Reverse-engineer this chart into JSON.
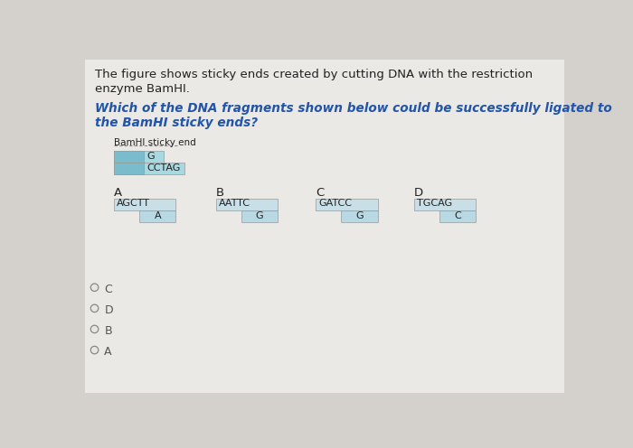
{
  "background_color": "#d4d0cb",
  "title_text1": "The figure shows sticky ends created by cutting DNA with the restriction",
  "title_text2": "enzyme BamHI.",
  "question_text1": "Which of the DNA fragments shown below could be successfully ligated to",
  "question_text2": "the BamHI sticky ends?",
  "question_color": "#2255aa",
  "label_sticky": "BamHI sticky end",
  "sticky_top_text": "G",
  "sticky_bottom_text": "CCTAG",
  "sticky_top_box_color": "#a8d8e0",
  "sticky_bottom_box_color": "#a8d8e0",
  "sticky_strip_color": "#7bbccc",
  "fragments": [
    {
      "label": "A",
      "top": "AGCTT",
      "bottom": "A"
    },
    {
      "label": "B",
      "top": "AATTC",
      "bottom": "G"
    },
    {
      "label": "C",
      "top": "GATCC",
      "bottom": "G"
    },
    {
      "label": "D",
      "top": "TGCAG",
      "bottom": "C"
    }
  ],
  "top_box_color": "#c8dfe8",
  "bottom_box_color": "#b8d8e4",
  "strip_color": "#7bbccc",
  "options": [
    "C",
    "D",
    "B",
    "A"
  ],
  "option_color": "#555555",
  "text_color": "#222222"
}
